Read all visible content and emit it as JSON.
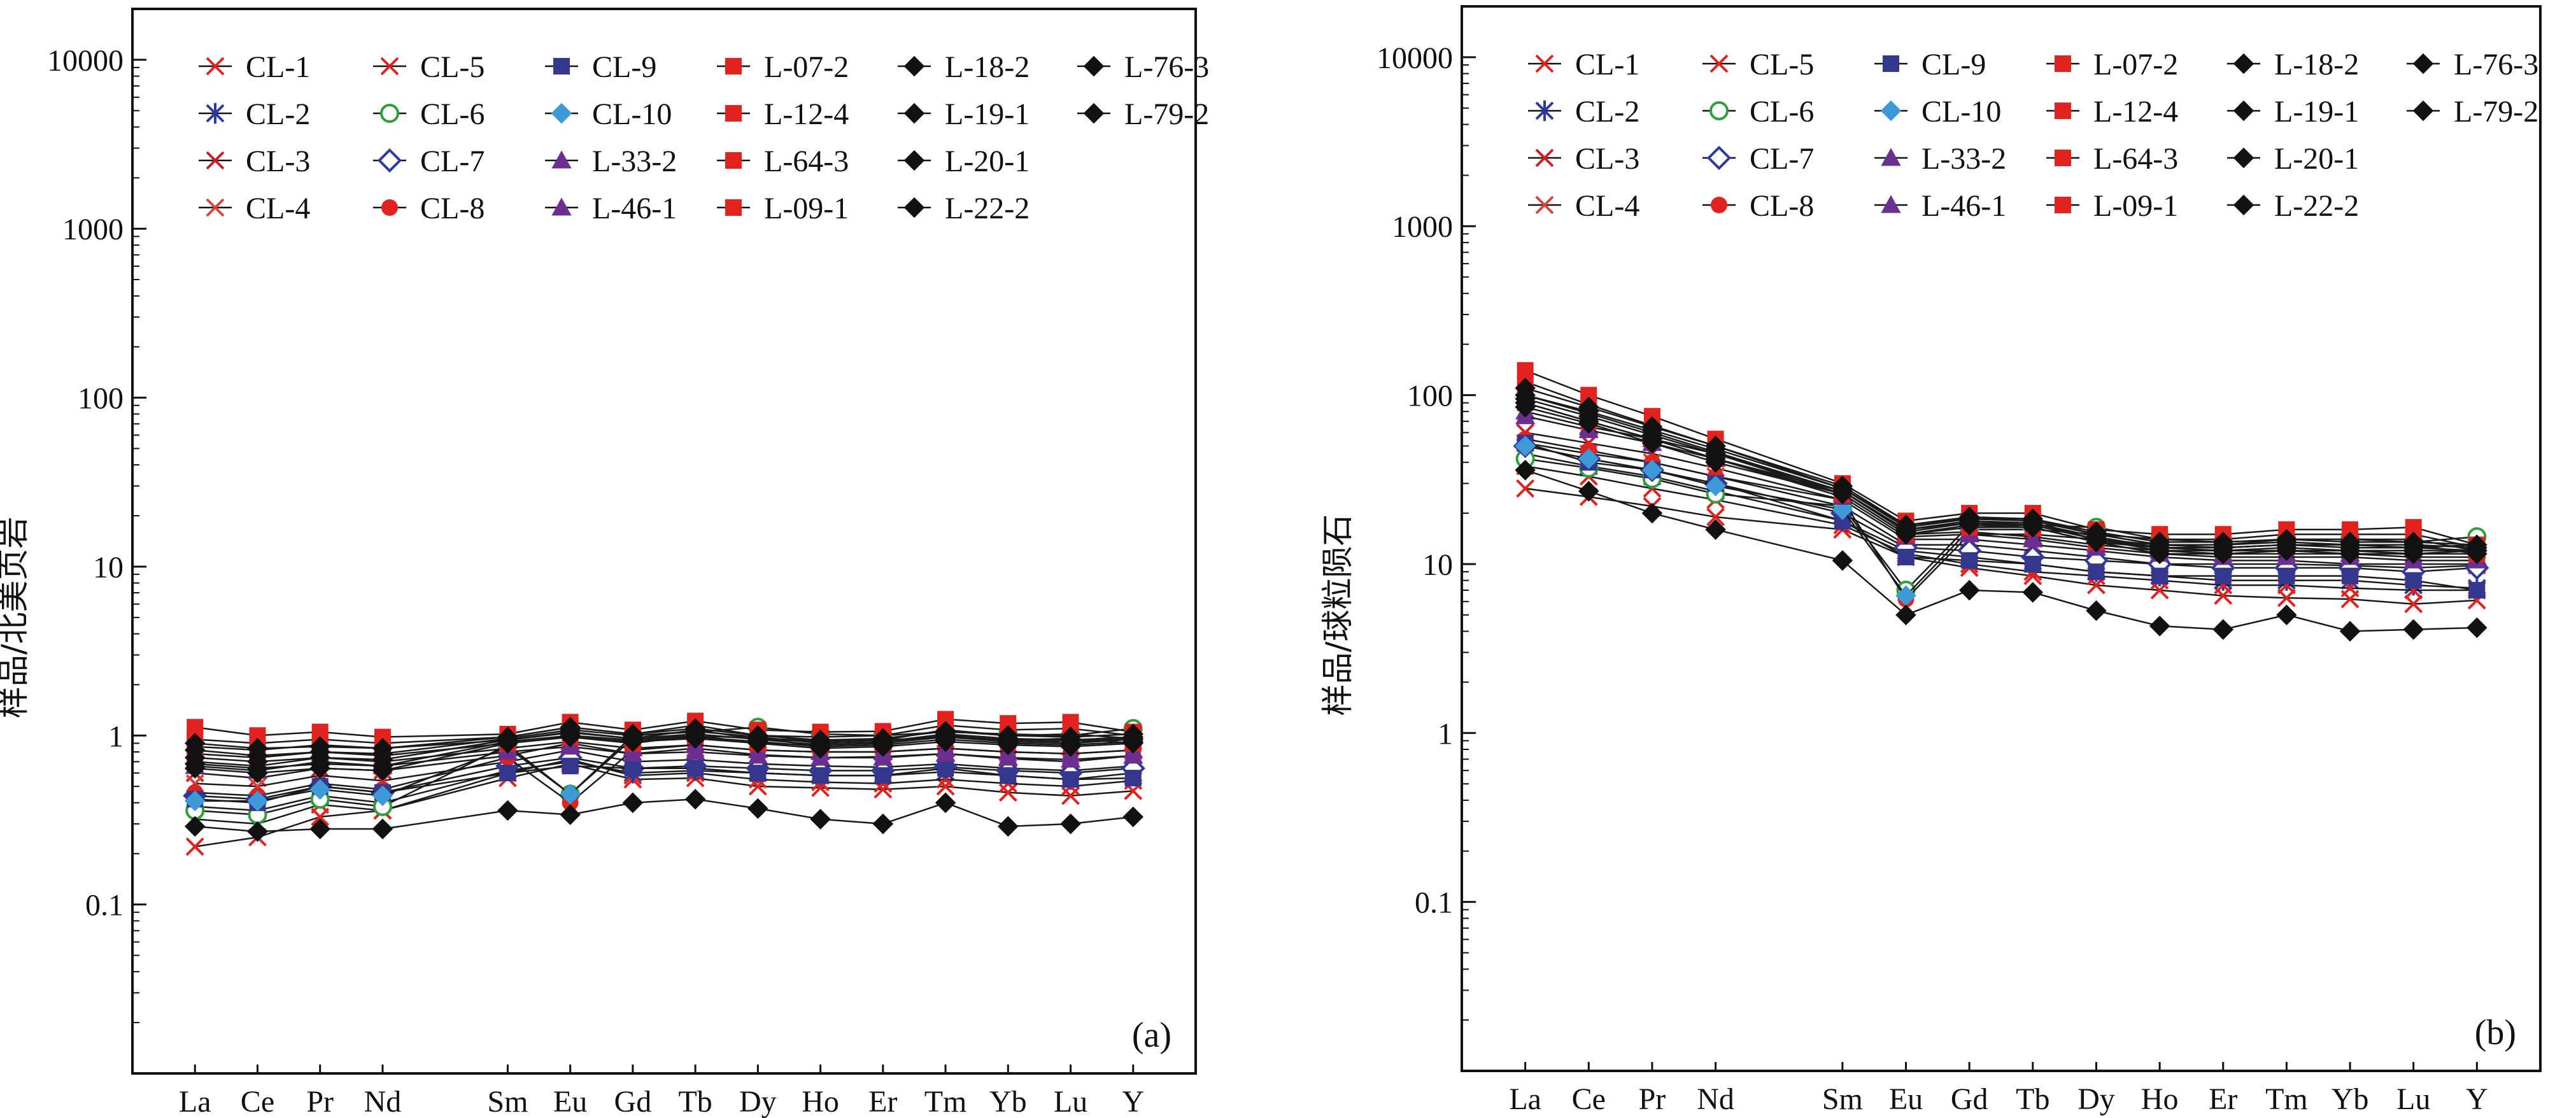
{
  "legend": [
    {
      "name": "CL-1",
      "marker": "x",
      "color": "#e0231f"
    },
    {
      "name": "CL-2",
      "marker": "star",
      "color": "#2d3a9c"
    },
    {
      "name": "CL-3",
      "marker": "x",
      "color": "#c8202a"
    },
    {
      "name": "CL-4",
      "marker": "x",
      "color": "#d6453f"
    },
    {
      "name": "CL-5",
      "marker": "x",
      "color": "#e0231f"
    },
    {
      "name": "CL-6",
      "marker": "circle-open",
      "color": "#2f9e3c"
    },
    {
      "name": "CL-7",
      "marker": "diamond-open",
      "color": "#2d3a9c"
    },
    {
      "name": "CL-8",
      "marker": "circle",
      "color": "#e0231f"
    },
    {
      "name": "CL-9",
      "marker": "square",
      "color": "#35378f"
    },
    {
      "name": "CL-10",
      "marker": "diamond",
      "color": "#3d9ad6"
    },
    {
      "name": "L-33-2",
      "marker": "triangle",
      "color": "#6a2f8f"
    },
    {
      "name": "L-46-1",
      "marker": "triangle",
      "color": "#6a2f8f"
    },
    {
      "name": "L-07-2",
      "marker": "square",
      "color": "#e0231f"
    },
    {
      "name": "L-12-4",
      "marker": "square",
      "color": "#e0231f"
    },
    {
      "name": "L-64-3",
      "marker": "square",
      "color": "#e0231f"
    },
    {
      "name": "L-09-1",
      "marker": "square",
      "color": "#e0231f"
    },
    {
      "name": "L-18-2",
      "marker": "diamond",
      "color": "#111111"
    },
    {
      "name": "L-19-1",
      "marker": "diamond",
      "color": "#111111"
    },
    {
      "name": "L-20-1",
      "marker": "diamond",
      "color": "#111111"
    },
    {
      "name": "L-22-2",
      "marker": "diamond",
      "color": "#111111"
    },
    {
      "name": "L-76-3",
      "marker": "diamond",
      "color": "#111111"
    },
    {
      "name": "L-79-2",
      "marker": "diamond",
      "color": "#111111"
    }
  ],
  "chart_data": [
    {
      "type": "line",
      "panel_label": "(a)",
      "ylabel": "样品/北美页岩",
      "yscale": "log",
      "ylim": [
        0.01,
        20000
      ],
      "yticks": [
        "0.1",
        "1",
        "10",
        "100",
        "1000",
        "10000"
      ],
      "categories": [
        "La",
        "Ce",
        "Pr",
        "Nd",
        "Sm",
        "Eu",
        "Gd",
        "Tb",
        "Dy",
        "Ho",
        "Er",
        "Tm",
        "Yb",
        "Lu",
        "Y"
      ],
      "x": [
        1,
        2,
        3,
        4,
        6,
        7,
        8,
        9,
        10,
        11,
        12,
        13,
        14,
        15,
        16
      ],
      "series": [
        {
          "name": "CL-1",
          "values": [
            0.22,
            0.25,
            0.33,
            0.36,
            0.56,
            0.68,
            0.55,
            0.56,
            0.5,
            0.49,
            0.48,
            0.5,
            0.46,
            0.44,
            0.47
          ]
        },
        {
          "name": "CL-2",
          "values": [
            0.38,
            0.36,
            0.44,
            0.4,
            0.62,
            0.7,
            0.6,
            0.62,
            0.6,
            0.58,
            0.58,
            0.61,
            0.58,
            0.55,
            0.6
          ]
        },
        {
          "name": "CL-3",
          "values": [
            0.6,
            0.56,
            0.64,
            0.62,
            0.76,
            0.9,
            0.78,
            0.84,
            0.77,
            0.74,
            0.75,
            0.78,
            0.73,
            0.7,
            0.76
          ]
        },
        {
          "name": "CL-4",
          "values": [
            0.52,
            0.5,
            0.58,
            0.54,
            0.7,
            0.82,
            0.7,
            0.72,
            0.68,
            0.66,
            0.65,
            0.68,
            0.64,
            0.62,
            0.66
          ]
        },
        {
          "name": "CL-5",
          "values": [
            0.32,
            0.3,
            0.39,
            0.36,
            0.6,
            0.72,
            0.58,
            0.6,
            0.55,
            0.53,
            0.52,
            0.55,
            0.52,
            0.5,
            0.54
          ]
        },
        {
          "name": "CL-6",
          "values": [
            0.36,
            0.34,
            0.42,
            0.38,
            0.88,
            0.45,
            1.0,
            1.05,
            1.12,
            1.02,
            1.0,
            1.05,
            1.02,
            1.0,
            1.1
          ]
        },
        {
          "name": "CL-7",
          "values": [
            0.44,
            0.42,
            0.5,
            0.46,
            0.66,
            0.74,
            0.64,
            0.66,
            0.64,
            0.62,
            0.62,
            0.65,
            0.62,
            0.6,
            0.64
          ]
        },
        {
          "name": "CL-8",
          "values": [
            0.46,
            0.44,
            0.52,
            0.48,
            0.74,
            0.4,
            0.82,
            0.88,
            0.82,
            0.8,
            0.8,
            0.84,
            0.8,
            0.78,
            0.82
          ]
        },
        {
          "name": "CL-9",
          "values": [
            0.42,
            0.4,
            0.5,
            0.46,
            0.6,
            0.66,
            0.64,
            0.64,
            0.6,
            0.58,
            0.58,
            0.64,
            0.58,
            0.55,
            0.56
          ]
        },
        {
          "name": "CL-10",
          "values": [
            0.41,
            0.41,
            0.48,
            0.44,
            0.85,
            0.45,
            0.96,
            1.0,
            0.96,
            0.94,
            0.94,
            0.98,
            0.94,
            0.92,
            0.96
          ]
        },
        {
          "name": "L-33-2",
          "values": [
            0.66,
            0.62,
            0.7,
            0.66,
            0.8,
            0.86,
            0.78,
            0.8,
            0.76,
            0.74,
            0.74,
            0.78,
            0.74,
            0.72,
            0.76
          ]
        },
        {
          "name": "L-46-1",
          "values": [
            0.7,
            0.66,
            0.74,
            0.7,
            0.84,
            0.92,
            0.84,
            0.88,
            0.82,
            0.8,
            0.8,
            0.84,
            0.8,
            0.78,
            0.82
          ]
        },
        {
          "name": "L-07-2",
          "values": [
            1.12,
            1.0,
            1.05,
            0.98,
            1.02,
            1.2,
            1.08,
            1.22,
            1.08,
            1.05,
            1.06,
            1.25,
            1.18,
            1.2,
            1.05
          ]
        },
        {
          "name": "L-12-4",
          "values": [
            0.95,
            0.9,
            0.95,
            0.9,
            0.98,
            1.12,
            1.02,
            1.15,
            1.0,
            0.98,
            1.0,
            1.15,
            1.08,
            1.1,
            1.0
          ]
        },
        {
          "name": "L-64-3",
          "values": [
            0.86,
            0.82,
            0.88,
            0.84,
            0.94,
            1.05,
            0.96,
            1.08,
            0.95,
            0.92,
            0.94,
            1.08,
            1.0,
            1.02,
            0.96
          ]
        },
        {
          "name": "L-09-1",
          "values": [
            0.78,
            0.74,
            0.8,
            0.76,
            0.9,
            0.98,
            0.9,
            1.0,
            0.9,
            0.88,
            0.9,
            1.0,
            0.94,
            0.96,
            0.9
          ]
        },
        {
          "name": "L-18-2",
          "values": [
            0.9,
            0.84,
            0.86,
            0.84,
            0.98,
            1.12,
            1.02,
            1.1,
            1.0,
            0.94,
            0.96,
            1.06,
            1.0,
            0.98,
            1.02
          ]
        },
        {
          "name": "L-19-1",
          "values": [
            0.82,
            0.76,
            0.8,
            0.78,
            0.96,
            1.08,
            1.0,
            1.06,
            0.98,
            0.9,
            0.92,
            1.02,
            0.96,
            0.94,
            0.98
          ]
        },
        {
          "name": "L-20-1",
          "values": [
            0.74,
            0.7,
            0.74,
            0.72,
            0.94,
            1.04,
            0.96,
            1.02,
            0.95,
            0.88,
            0.9,
            0.98,
            0.92,
            0.9,
            0.95
          ]
        },
        {
          "name": "L-22-2",
          "values": [
            0.68,
            0.64,
            0.68,
            0.66,
            0.92,
            1.0,
            0.94,
            0.98,
            0.92,
            0.86,
            0.88,
            0.95,
            0.9,
            0.88,
            0.92
          ]
        },
        {
          "name": "L-76-3",
          "values": [
            0.64,
            0.6,
            0.64,
            0.62,
            0.9,
            0.98,
            0.92,
            0.96,
            0.9,
            0.84,
            0.86,
            0.92,
            0.88,
            0.86,
            0.9
          ]
        },
        {
          "name": "L-79-2",
          "values": [
            0.29,
            0.27,
            0.28,
            0.28,
            0.36,
            0.34,
            0.4,
            0.42,
            0.37,
            0.32,
            0.3,
            0.4,
            0.29,
            0.3,
            0.33
          ]
        }
      ]
    },
    {
      "type": "line",
      "panel_label": "(b)",
      "ylabel": "样品/球粒陨石",
      "yscale": "log",
      "ylim": [
        0.01,
        20000
      ],
      "yticks": [
        "0.1",
        "1",
        "10",
        "100",
        "1000",
        "10000"
      ],
      "categories": [
        "La",
        "Ce",
        "Pr",
        "Nd",
        "Sm",
        "Eu",
        "Gd",
        "Tb",
        "Dy",
        "Ho",
        "Er",
        "Tm",
        "Yb",
        "Lu",
        "Y"
      ],
      "x": [
        1,
        2,
        3,
        4,
        6,
        7,
        8,
        9,
        10,
        11,
        12,
        13,
        14,
        15,
        16
      ],
      "series": [
        {
          "name": "CL-1",
          "values": [
            28,
            25,
            22,
            19,
            16,
            11,
            9.5,
            8.5,
            7.5,
            7,
            6.5,
            6.3,
            6.2,
            5.8,
            6.1
          ]
        },
        {
          "name": "CL-2",
          "values": [
            45,
            38,
            33,
            27,
            18,
            12,
            11,
            10,
            9,
            8.5,
            8,
            8,
            8,
            7.5,
            7.2
          ]
        },
        {
          "name": "CL-3",
          "values": [
            60,
            52,
            45,
            37,
            24,
            14,
            14,
            13,
            12,
            11,
            10.5,
            10.5,
            10,
            10,
            10
          ]
        },
        {
          "name": "CL-4",
          "values": [
            52,
            45,
            40,
            33,
            22,
            13,
            13,
            12,
            11,
            10,
            10,
            10,
            9.8,
            9.5,
            9.8
          ]
        },
        {
          "name": "CL-5",
          "values": [
            38,
            33,
            28,
            24,
            17,
            11.5,
            10,
            9,
            8.5,
            8,
            7.5,
            7.5,
            7.2,
            7,
            7
          ]
        },
        {
          "name": "CL-6",
          "values": [
            42,
            37,
            32,
            26,
            22,
            7,
            17,
            17,
            16.5,
            14,
            13.5,
            14,
            14,
            13.5,
            14.5
          ]
        },
        {
          "name": "CL-7",
          "values": [
            50,
            42,
            36,
            30,
            20,
            12.5,
            12,
            11,
            10.5,
            10,
            9.5,
            9.5,
            9.5,
            9,
            9.5
          ]
        },
        {
          "name": "CL-8",
          "values": [
            55,
            47,
            40,
            33,
            24,
            6.2,
            15,
            15,
            14,
            12.5,
            12,
            12,
            12,
            11.5,
            12
          ]
        },
        {
          "name": "CL-9",
          "values": [
            52,
            40,
            36,
            30,
            18,
            11,
            10.5,
            10,
            9,
            8.5,
            8.5,
            8.5,
            8.5,
            8,
            7
          ]
        },
        {
          "name": "CL-10",
          "values": [
            50,
            42,
            36,
            29,
            21,
            6.5,
            16,
            16,
            15,
            13,
            12.5,
            13,
            13,
            12.5,
            13
          ]
        },
        {
          "name": "L-33-2",
          "values": [
            80,
            65,
            55,
            45,
            26,
            15,
            15.5,
            14.5,
            13,
            12,
            11.5,
            11.5,
            11.5,
            11,
            11
          ]
        },
        {
          "name": "L-46-1",
          "values": [
            75,
            62,
            52,
            42,
            25,
            14.5,
            15,
            14,
            12.5,
            11.5,
            11,
            11,
            11,
            10.5,
            10.5
          ]
        },
        {
          "name": "L-07-2",
          "values": [
            140,
            100,
            75,
            55,
            30,
            18,
            20,
            20,
            16,
            15,
            15,
            16,
            16,
            16.5,
            13
          ]
        },
        {
          "name": "L-12-4",
          "values": [
            120,
            88,
            66,
            50,
            28,
            17,
            18.5,
            18.5,
            15,
            14,
            14,
            15,
            15,
            15,
            12.5
          ]
        },
        {
          "name": "L-64-3",
          "values": [
            100,
            78,
            60,
            46,
            27,
            16,
            17.5,
            17.5,
            14,
            13,
            13,
            14,
            14,
            14,
            12
          ]
        },
        {
          "name": "L-09-1",
          "values": [
            90,
            70,
            55,
            42,
            26,
            15,
            16.5,
            16.5,
            13.5,
            12.5,
            12.5,
            13,
            13,
            13,
            11.5
          ]
        },
        {
          "name": "L-18-2",
          "values": [
            110,
            85,
            65,
            50,
            29,
            17,
            19,
            18.5,
            15.5,
            13.5,
            13.5,
            14,
            13.5,
            13.5,
            13
          ]
        },
        {
          "name": "L-19-1",
          "values": [
            100,
            80,
            62,
            48,
            28,
            16.5,
            18.5,
            18,
            15,
            13,
            13,
            13.5,
            13,
            13,
            12.5
          ]
        },
        {
          "name": "L-20-1",
          "values": [
            95,
            75,
            58,
            45,
            27,
            16,
            18,
            17.5,
            14.5,
            12.5,
            12.5,
            13,
            12.5,
            12.5,
            12
          ]
        },
        {
          "name": "L-22-2",
          "values": [
            90,
            70,
            55,
            42,
            27,
            15.5,
            17.5,
            17,
            14,
            12,
            12,
            12.5,
            12,
            12,
            12
          ]
        },
        {
          "name": "L-76-3",
          "values": [
            85,
            68,
            52,
            40,
            26,
            15,
            17,
            16.5,
            13.5,
            11.5,
            11.5,
            12,
            11.5,
            11.5,
            11.5
          ]
        },
        {
          "name": "L-79-2",
          "values": [
            36,
            27,
            20,
            16,
            10.5,
            5,
            7,
            6.8,
            5.3,
            4.3,
            4.1,
            5,
            4,
            4.1,
            4.2
          ]
        }
      ]
    }
  ]
}
